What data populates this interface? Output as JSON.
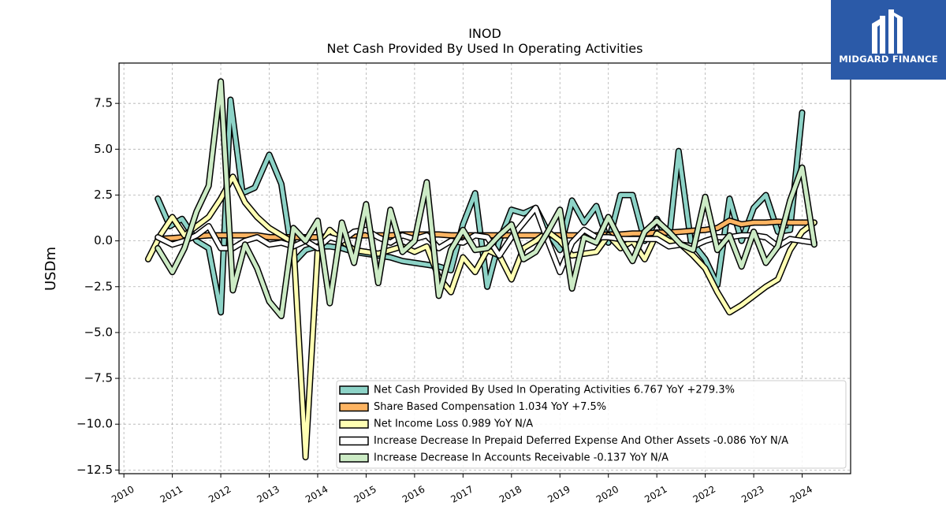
{
  "chart_data": {
    "type": "line",
    "title": "INOD",
    "subtitle": "Net Cash Provided By Used In Operating Activities",
    "xlabel": "",
    "ylabel": "USDm",
    "xlim": [
      2009.9,
      2025.0
    ],
    "ylim": [
      -12.7,
      9.7
    ],
    "yticks": [
      7.5,
      5.0,
      2.5,
      0.0,
      -2.5,
      -5.0,
      -7.5,
      -10.0,
      -12.5
    ],
    "ytick_labels": [
      "7.5",
      "5.0",
      "2.5",
      "0.0",
      "−2.5",
      "−5.0",
      "−7.5",
      "−10.0",
      "−12.5"
    ],
    "xticks": [
      2010,
      2011,
      2012,
      2013,
      2014,
      2015,
      2016,
      2017,
      2018,
      2019,
      2020,
      2021,
      2022,
      2023,
      2024
    ],
    "xtick_labels": [
      "2010",
      "2011",
      "2012",
      "2013",
      "2014",
      "2015",
      "2016",
      "2017",
      "2018",
      "2019",
      "2020",
      "2021",
      "2022",
      "2023",
      "2024"
    ],
    "grid": true,
    "legend_position": "lower-right",
    "series": [
      {
        "name": "Net Cash Provided By Used In Operating Activities",
        "legend": "Net Cash Provided By Used In Operating Activities  6.767 YoY +279.3%",
        "color": "#8dd3c7",
        "points": [
          [
            2010.7,
            2.3
          ],
          [
            2010.95,
            0.8
          ],
          [
            2011.2,
            1.2
          ],
          [
            2011.5,
            0
          ],
          [
            2011.75,
            -0.4
          ],
          [
            2012.0,
            -3.9
          ],
          [
            2012.2,
            7.7
          ],
          [
            2012.45,
            2.6
          ],
          [
            2012.7,
            2.9
          ],
          [
            2013.0,
            4.7
          ],
          [
            2013.25,
            3.1
          ],
          [
            2013.5,
            -1.2
          ],
          [
            2013.75,
            -0.5
          ],
          [
            2014.0,
            -0.3
          ],
          [
            2014.25,
            -0.3
          ],
          [
            2014.5,
            -0.4
          ],
          [
            2014.75,
            -0.6
          ],
          [
            2015.0,
            -0.7
          ],
          [
            2015.25,
            -0.8
          ],
          [
            2015.5,
            -0.9
          ],
          [
            2015.75,
            -1.1
          ],
          [
            2016.0,
            -1.2
          ],
          [
            2016.25,
            -1.3
          ],
          [
            2016.5,
            -1.4
          ],
          [
            2016.75,
            -1.6
          ],
          [
            2017.0,
            0.9
          ],
          [
            2017.25,
            2.6
          ],
          [
            2017.5,
            -2.5
          ],
          [
            2017.75,
            0
          ],
          [
            2018.0,
            1.7
          ],
          [
            2018.25,
            1.5
          ],
          [
            2018.5,
            1.8
          ],
          [
            2018.75,
            0.5
          ],
          [
            2019.0,
            -0.5
          ],
          [
            2019.25,
            2.2
          ],
          [
            2019.5,
            1.0
          ],
          [
            2019.75,
            1.9
          ],
          [
            2020.0,
            -0.1
          ],
          [
            2020.25,
            2.5
          ],
          [
            2020.5,
            2.5
          ],
          [
            2020.75,
            0
          ],
          [
            2021.0,
            1.2
          ],
          [
            2021.25,
            0
          ],
          [
            2021.45,
            4.9
          ],
          [
            2021.7,
            0
          ],
          [
            2022.0,
            -1.0
          ],
          [
            2022.25,
            -2.4
          ],
          [
            2022.5,
            2.3
          ],
          [
            2022.75,
            0
          ],
          [
            2023.0,
            1.8
          ],
          [
            2023.25,
            2.5
          ],
          [
            2023.5,
            0.5
          ],
          [
            2023.75,
            0.6
          ],
          [
            2024.0,
            7.0
          ]
        ]
      },
      {
        "name": "Share Based Compensation",
        "legend": "Share Based Compensation  1.034 YoY +7.5%",
        "color": "#fdb462",
        "points": [
          [
            2010.7,
            0.1
          ],
          [
            2011.0,
            0.15
          ],
          [
            2011.25,
            0.2
          ],
          [
            2011.5,
            0.25
          ],
          [
            2011.75,
            0.3
          ],
          [
            2012.0,
            0.3
          ],
          [
            2012.25,
            0.3
          ],
          [
            2012.5,
            0.3
          ],
          [
            2012.75,
            0.3
          ],
          [
            2013.0,
            0.2
          ],
          [
            2013.25,
            0.2
          ],
          [
            2013.5,
            0.2
          ],
          [
            2013.75,
            0.2
          ],
          [
            2014.0,
            0.2
          ],
          [
            2014.25,
            0.25
          ],
          [
            2014.5,
            0.3
          ],
          [
            2014.75,
            0.3
          ],
          [
            2015.0,
            0.3
          ],
          [
            2015.25,
            0.3
          ],
          [
            2015.5,
            0.3
          ],
          [
            2015.75,
            0.35
          ],
          [
            2016.0,
            0.35
          ],
          [
            2016.25,
            0.35
          ],
          [
            2016.5,
            0.35
          ],
          [
            2016.75,
            0.3
          ],
          [
            2017.0,
            0.3
          ],
          [
            2017.25,
            0.3
          ],
          [
            2017.5,
            0.3
          ],
          [
            2017.75,
            0.3
          ],
          [
            2018.0,
            0.3
          ],
          [
            2018.25,
            0.3
          ],
          [
            2018.5,
            0.3
          ],
          [
            2018.75,
            0.3
          ],
          [
            2019.0,
            0.3
          ],
          [
            2019.25,
            0.3
          ],
          [
            2019.5,
            0.3
          ],
          [
            2019.75,
            0.3
          ],
          [
            2020.0,
            0.35
          ],
          [
            2020.25,
            0.35
          ],
          [
            2020.5,
            0.4
          ],
          [
            2020.75,
            0.4
          ],
          [
            2021.0,
            0.45
          ],
          [
            2021.25,
            0.45
          ],
          [
            2021.5,
            0.5
          ],
          [
            2021.75,
            0.55
          ],
          [
            2022.0,
            0.6
          ],
          [
            2022.25,
            0.7
          ],
          [
            2022.5,
            1.1
          ],
          [
            2022.75,
            0.9
          ],
          [
            2023.0,
            1.0
          ],
          [
            2023.25,
            1.0
          ],
          [
            2023.5,
            1.05
          ],
          [
            2023.75,
            1.0
          ],
          [
            2024.0,
            1.0
          ],
          [
            2024.25,
            1.0
          ]
        ]
      },
      {
        "name": "Net Income Loss",
        "legend": "Net Income Loss  0.989 YoY N/A",
        "color": "#ffffb3",
        "points": [
          [
            2010.5,
            -1.0
          ],
          [
            2010.75,
            0.3
          ],
          [
            2011.0,
            1.3
          ],
          [
            2011.25,
            0.3
          ],
          [
            2011.5,
            0.8
          ],
          [
            2011.75,
            1.3
          ],
          [
            2012.0,
            2.3
          ],
          [
            2012.25,
            3.5
          ],
          [
            2012.5,
            2.1
          ],
          [
            2012.75,
            1.3
          ],
          [
            2013.0,
            0.7
          ],
          [
            2013.25,
            0.3
          ],
          [
            2013.5,
            -0.1
          ],
          [
            2013.75,
            -11.8
          ],
          [
            2014.0,
            -0.5
          ],
          [
            2014.25,
            0.6
          ],
          [
            2014.5,
            0
          ],
          [
            2014.75,
            -0.5
          ],
          [
            2015.0,
            -0.6
          ],
          [
            2015.25,
            -0.7
          ],
          [
            2015.5,
            -0.5
          ],
          [
            2015.75,
            -0.3
          ],
          [
            2016.0,
            -0.6
          ],
          [
            2016.25,
            -0.3
          ],
          [
            2016.5,
            -2.0
          ],
          [
            2016.75,
            -2.8
          ],
          [
            2017.0,
            -0.9
          ],
          [
            2017.25,
            -1.7
          ],
          [
            2017.5,
            -0.5
          ],
          [
            2017.75,
            -0.8
          ],
          [
            2018.0,
            -2.1
          ],
          [
            2018.25,
            -0.4
          ],
          [
            2018.5,
            0.0
          ],
          [
            2018.75,
            0.5
          ],
          [
            2019.0,
            0.0
          ],
          [
            2019.25,
            -0.8
          ],
          [
            2019.5,
            -0.7
          ],
          [
            2019.75,
            -0.6
          ],
          [
            2020.0,
            0.3
          ],
          [
            2020.25,
            -0.4
          ],
          [
            2020.5,
            0.0
          ],
          [
            2020.75,
            -1.0
          ],
          [
            2021.0,
            0.4
          ],
          [
            2021.25,
            0
          ],
          [
            2021.5,
            -0.2
          ],
          [
            2021.75,
            -0.8
          ],
          [
            2022.0,
            -1.5
          ],
          [
            2022.25,
            -2.8
          ],
          [
            2022.5,
            -3.9
          ],
          [
            2022.75,
            -3.5
          ],
          [
            2023.0,
            -3.0
          ],
          [
            2023.25,
            -2.5
          ],
          [
            2023.5,
            -2.1
          ],
          [
            2023.75,
            -0.5
          ],
          [
            2024.0,
            0.5
          ],
          [
            2024.25,
            1.0
          ]
        ]
      },
      {
        "name": "Increase Decrease In Prepaid Deferred Expense And Other Assets",
        "legend": "Increase Decrease In Prepaid Deferred Expense And Other Assets  -0.086 YoY N/A",
        "color": "#ffffff",
        "points": [
          [
            2010.7,
            0.2
          ],
          [
            2011.0,
            -0.2
          ],
          [
            2011.25,
            0.0
          ],
          [
            2011.5,
            0.3
          ],
          [
            2011.75,
            0.8
          ],
          [
            2012.0,
            -0.4
          ],
          [
            2012.25,
            -0.4
          ],
          [
            2012.5,
            0
          ],
          [
            2012.75,
            0.2
          ],
          [
            2013.0,
            -0.2
          ],
          [
            2013.25,
            -0.1
          ],
          [
            2013.5,
            -0.3
          ],
          [
            2013.75,
            0.0
          ],
          [
            2014.0,
            -0.4
          ],
          [
            2014.25,
            0.2
          ],
          [
            2014.5,
            0
          ],
          [
            2014.75,
            0.5
          ],
          [
            2015.0,
            0.6
          ],
          [
            2015.25,
            0.2
          ],
          [
            2015.5,
            -0.1
          ],
          [
            2015.75,
            0.3
          ],
          [
            2016.0,
            0.1
          ],
          [
            2016.25,
            0.3
          ],
          [
            2016.5,
            -0.4
          ],
          [
            2016.75,
            0.0
          ],
          [
            2017.0,
            -0.1
          ],
          [
            2017.25,
            0.3
          ],
          [
            2017.5,
            0.2
          ],
          [
            2017.75,
            -0.8
          ],
          [
            2018.0,
            0.2
          ],
          [
            2018.25,
            1.0
          ],
          [
            2018.5,
            1.8
          ],
          [
            2018.75,
            0.0
          ],
          [
            2019.0,
            -1.7
          ],
          [
            2019.25,
            -0.1
          ],
          [
            2019.5,
            0.6
          ],
          [
            2019.75,
            0.2
          ],
          [
            2020.0,
            0.2
          ],
          [
            2020.25,
            0.1
          ],
          [
            2020.5,
            0.1
          ],
          [
            2020.75,
            0.1
          ],
          [
            2021.0,
            0.1
          ],
          [
            2021.25,
            -0.3
          ],
          [
            2021.5,
            -0.2
          ],
          [
            2021.75,
            -0.3
          ],
          [
            2022.0,
            0
          ],
          [
            2022.25,
            0.2
          ],
          [
            2022.5,
            0.2
          ],
          [
            2022.75,
            0.3
          ],
          [
            2023.0,
            0.3
          ],
          [
            2023.25,
            0.2
          ],
          [
            2023.5,
            -0.3
          ],
          [
            2023.75,
            0.1
          ],
          [
            2024.0,
            0.0
          ],
          [
            2024.25,
            -0.1
          ]
        ]
      },
      {
        "name": "Increase Decrease In Accounts Receivable",
        "legend": "Increase Decrease In Accounts Receivable  -0.137 YoY N/A",
        "color": "#ccebc5",
        "points": [
          [
            2010.7,
            -0.4
          ],
          [
            2011.0,
            -1.7
          ],
          [
            2011.25,
            -0.4
          ],
          [
            2011.5,
            1.6
          ],
          [
            2011.75,
            3.0
          ],
          [
            2012.0,
            8.7
          ],
          [
            2012.25,
            -2.7
          ],
          [
            2012.5,
            -0.2
          ],
          [
            2012.75,
            -1.5
          ],
          [
            2013.0,
            -3.3
          ],
          [
            2013.25,
            -4.1
          ],
          [
            2013.5,
            0.7
          ],
          [
            2013.75,
            0
          ],
          [
            2014.0,
            1.1
          ],
          [
            2014.25,
            -3.4
          ],
          [
            2014.5,
            1.0
          ],
          [
            2014.75,
            -1.2
          ],
          [
            2015.0,
            2.0
          ],
          [
            2015.25,
            -2.3
          ],
          [
            2015.5,
            1.7
          ],
          [
            2015.75,
            -0.6
          ],
          [
            2016.0,
            0.0
          ],
          [
            2016.25,
            3.2
          ],
          [
            2016.5,
            -3.0
          ],
          [
            2016.75,
            -0.5
          ],
          [
            2017.0,
            0.6
          ],
          [
            2017.25,
            -0.5
          ],
          [
            2017.5,
            -0.4
          ],
          [
            2017.75,
            0.3
          ],
          [
            2018.0,
            0.9
          ],
          [
            2018.25,
            -1.0
          ],
          [
            2018.5,
            -0.6
          ],
          [
            2018.75,
            0.5
          ],
          [
            2019.0,
            1.7
          ],
          [
            2019.25,
            -2.6
          ],
          [
            2019.5,
            0.2
          ],
          [
            2019.75,
            -0.1
          ],
          [
            2020.0,
            1.3
          ],
          [
            2020.25,
            0.0
          ],
          [
            2020.5,
            -1.1
          ],
          [
            2020.75,
            0.5
          ],
          [
            2021.0,
            1.1
          ],
          [
            2021.25,
            0.5
          ],
          [
            2021.5,
            -0.2
          ],
          [
            2021.75,
            -0.5
          ],
          [
            2022.0,
            2.4
          ],
          [
            2022.25,
            -0.5
          ],
          [
            2022.5,
            0.3
          ],
          [
            2022.75,
            -1.4
          ],
          [
            2023.0,
            0.5
          ],
          [
            2023.25,
            -1.2
          ],
          [
            2023.5,
            -0.3
          ],
          [
            2023.75,
            2.2
          ],
          [
            2024.0,
            4.0
          ],
          [
            2024.25,
            -0.2
          ]
        ]
      }
    ]
  },
  "logo": {
    "text": "MIDGARD FINANCE",
    "bg_color": "#2b5aa8"
  }
}
